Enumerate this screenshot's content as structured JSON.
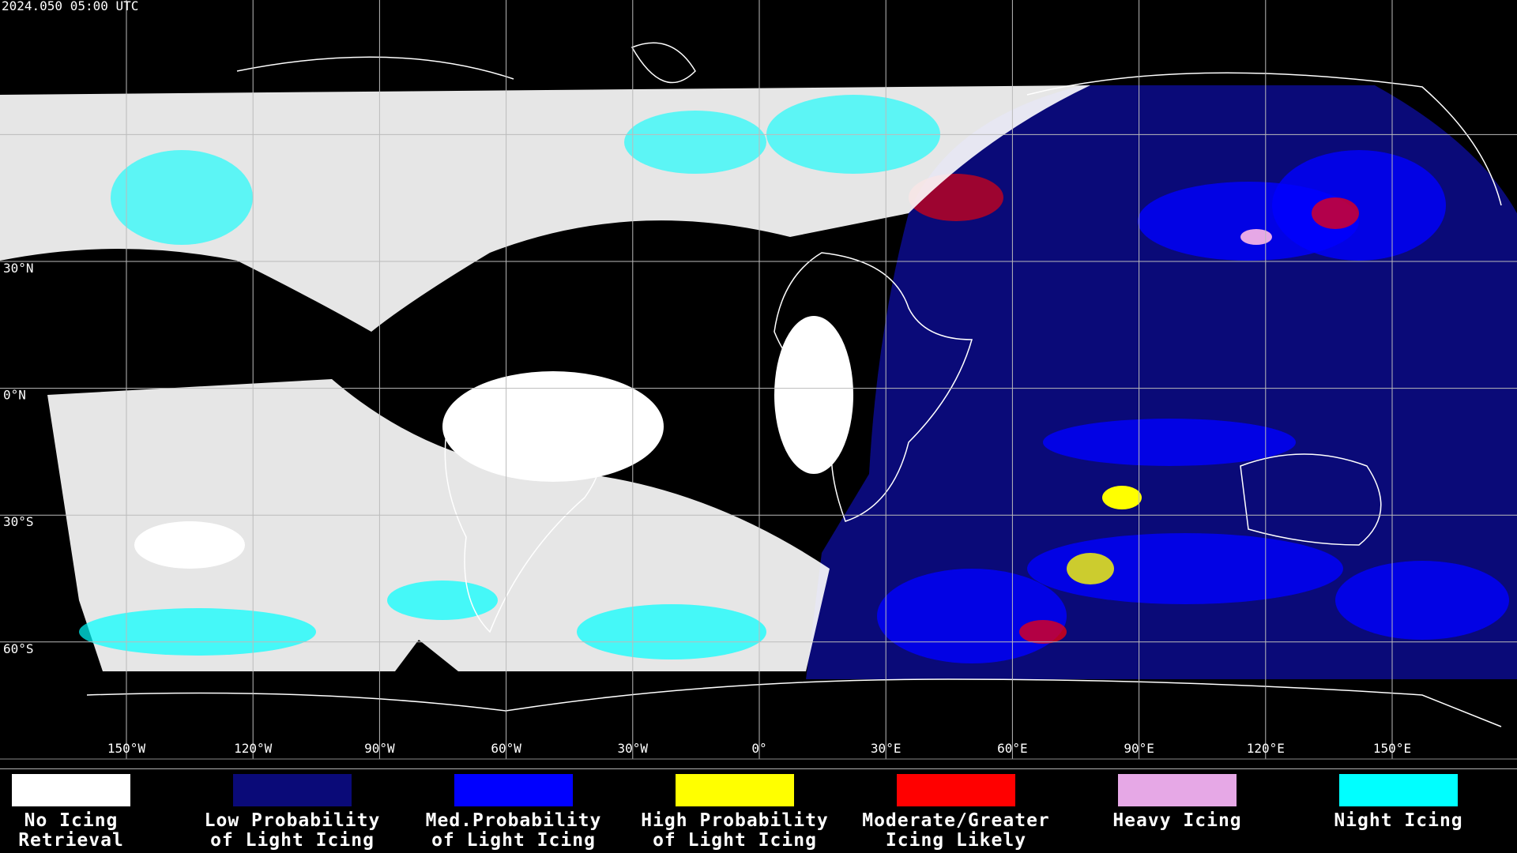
{
  "header": {
    "timestamp": "2024.050 05:00 UTC"
  },
  "map": {
    "latitude_labels": [
      "30°N",
      "0°N",
      "30°S",
      "60°S"
    ],
    "longitude_labels": [
      "150°W",
      "120°W",
      "90°W",
      "60°W",
      "30°W",
      "0°",
      "30°E",
      "60°E",
      "90°E",
      "120°E",
      "150°E"
    ]
  },
  "legend": [
    {
      "lines": [
        "No Icing",
        "Retrieval"
      ],
      "color": "#ffffff"
    },
    {
      "lines": [
        "Low Probability",
        "of Light Icing"
      ],
      "color": "#0a0a78"
    },
    {
      "lines": [
        "Med.Probability",
        "of Light Icing"
      ],
      "color": "#0000ff"
    },
    {
      "lines": [
        "High Probability",
        "of Light Icing"
      ],
      "color": "#ffff00"
    },
    {
      "lines": [
        "Moderate/Greater",
        "Icing Likely"
      ],
      "color": "#ff0000"
    },
    {
      "lines": [
        "Heavy Icing"
      ],
      "color": "#e6a8e6"
    },
    {
      "lines": [
        "Night Icing"
      ],
      "color": "#00ffff"
    }
  ]
}
